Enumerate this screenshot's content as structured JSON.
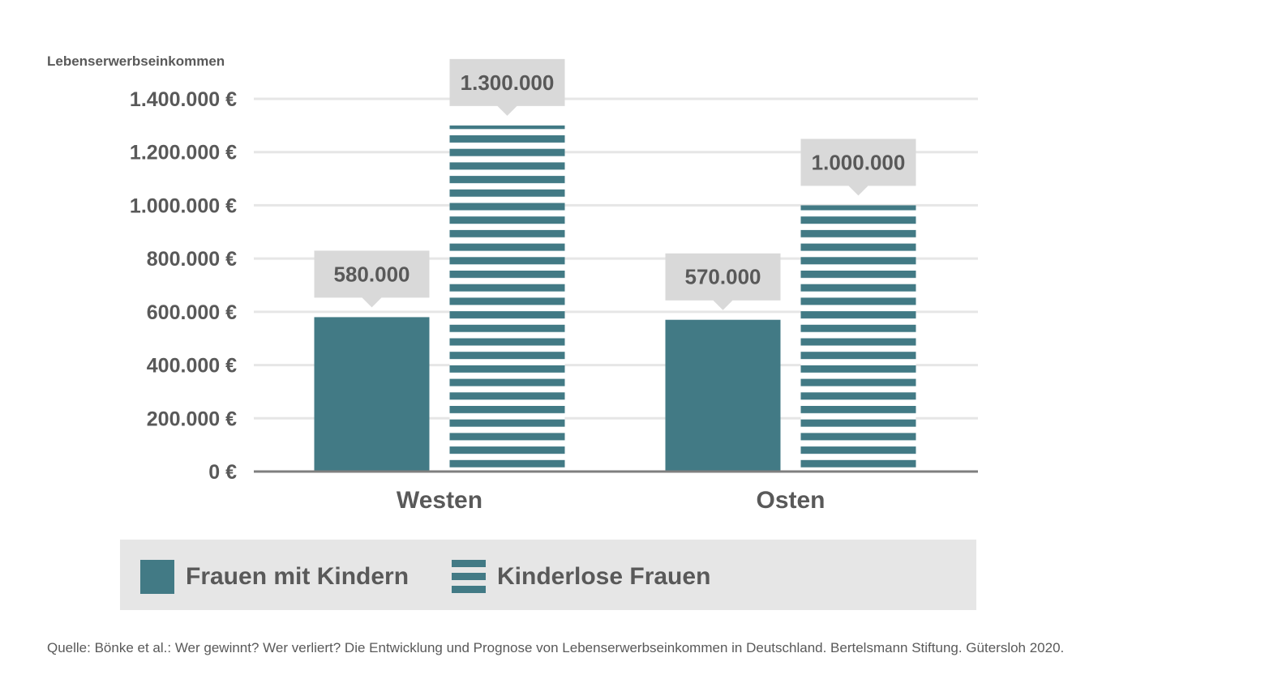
{
  "chart_data": {
    "type": "bar",
    "ylabel": "Lebenserwerbseinkommen",
    "categories": [
      "Westen",
      "Osten"
    ],
    "series": [
      {
        "name": "Frauen mit Kindern",
        "values": [
          580000,
          570000
        ],
        "labels": [
          "580.000",
          "570.000"
        ],
        "pattern": "solid"
      },
      {
        "name": "Kinderlose Frauen",
        "values": [
          1300000,
          1000000
        ],
        "labels": [
          "1.300.000",
          "1.000.000"
        ],
        "pattern": "striped"
      }
    ],
    "yticks": [
      {
        "value": 0,
        "label": "0 €"
      },
      {
        "value": 200000,
        "label": "200.000 €"
      },
      {
        "value": 400000,
        "label": "400.000 €"
      },
      {
        "value": 600000,
        "label": "600.000 €"
      },
      {
        "value": 800000,
        "label": "800.000 €"
      },
      {
        "value": 1000000,
        "label": "1.000.000 €"
      },
      {
        "value": 1200000,
        "label": "1.200.000 €"
      },
      {
        "value": 1400000,
        "label": "1.400.000 €"
      }
    ],
    "ylim": [
      0,
      1400000
    ],
    "grid": true,
    "legend_position": "bottom"
  },
  "colors": {
    "bar": "#427a85",
    "grid": "#e6e6e6",
    "axis": "#7f7f7f",
    "callout": "#d9d9d9",
    "text": "#595959"
  },
  "source": "Quelle: Bönke et al.: Wer gewinnt? Wer verliert? Die Entwicklung und Prognose von Lebenserwerbseinkommen in Deutschland. Bertelsmann Stiftung. Gütersloh 2020."
}
